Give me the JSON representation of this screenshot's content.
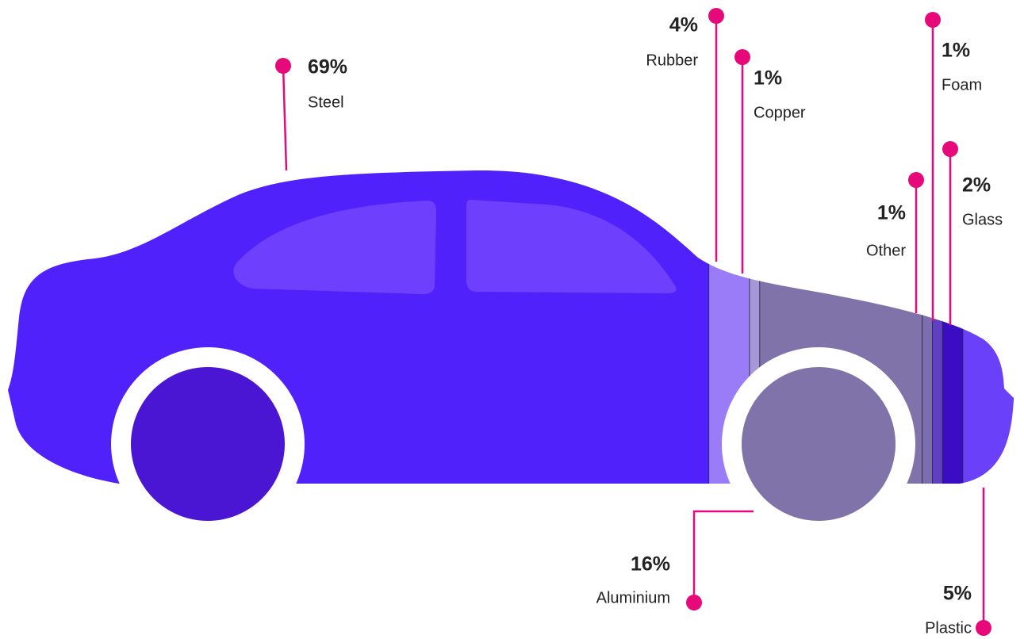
{
  "chart_data": {
    "type": "car-composition",
    "categories": [
      "Steel",
      "Rubber",
      "Copper",
      "Aluminium",
      "Other",
      "Foam",
      "Glass",
      "Plastic"
    ],
    "values": [
      69,
      4,
      1,
      16,
      1,
      1,
      2,
      5
    ],
    "value_labels": [
      "69%",
      "4%",
      "1%",
      "16%",
      "1%",
      "1%",
      "2%",
      "5%"
    ],
    "colors": [
      "#5021fa",
      "#9a7cf8",
      "#a597d8",
      "#8073a9",
      "#7c6db0",
      "#5f3fc2",
      "#3a0cc2",
      "#6b40f9"
    ],
    "marker_color": "#e6097a"
  }
}
